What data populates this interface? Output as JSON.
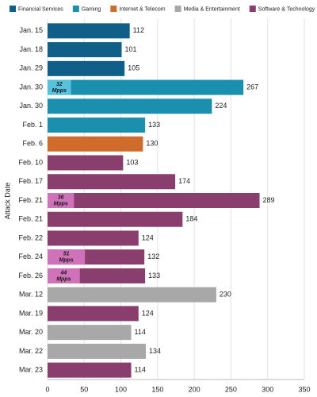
{
  "chart_data": {
    "type": "bar",
    "orientation": "horizontal",
    "y_label": "Attack Date",
    "categories": [
      "Jan. 15",
      "Jan. 18",
      "Jan. 29",
      "Jan. 30",
      "Jan. 30",
      "Feb. 1",
      "Feb. 6",
      "Feb. 10",
      "Feb. 17",
      "Feb. 21",
      "Feb. 21",
      "Feb. 22",
      "Feb. 24",
      "Feb. 26",
      "Mar. 12",
      "Mar. 19",
      "Mar. 20",
      "Mar. 22",
      "Mar. 23"
    ],
    "series": [
      {
        "name": "Financial Services",
        "color": "#0f5f88",
        "values": [
          112,
          101,
          105,
          null,
          null,
          null,
          null,
          null,
          null,
          null,
          null,
          null,
          null,
          null,
          null,
          null,
          null,
          null,
          null
        ]
      },
      {
        "name": "Gaming",
        "color": "#1b8fae",
        "values": [
          null,
          null,
          null,
          267,
          224,
          133,
          null,
          null,
          null,
          null,
          null,
          null,
          null,
          null,
          null,
          null,
          null,
          null,
          null
        ]
      },
      {
        "name": "Internet & Telecom",
        "color": "#d06c2b",
        "values": [
          null,
          null,
          null,
          null,
          null,
          null,
          130,
          null,
          null,
          null,
          null,
          null,
          null,
          null,
          null,
          null,
          null,
          null,
          null
        ]
      },
      {
        "name": "Media & Entertainment",
        "color": "#a8a8a8",
        "values": [
          null,
          null,
          null,
          null,
          null,
          null,
          null,
          null,
          null,
          null,
          null,
          null,
          null,
          null,
          230,
          null,
          114,
          134,
          null
        ]
      },
      {
        "name": "Software & Technology",
        "color": "#8a3e6e",
        "values": [
          null,
          null,
          null,
          null,
          null,
          null,
          null,
          103,
          174,
          289,
          184,
          124,
          132,
          133,
          null,
          124,
          null,
          null,
          114
        ]
      }
    ],
    "overlay_unit": "Mpps",
    "overlays": [
      {
        "color": "#56c2dd",
        "values": [
          null,
          null,
          null,
          32,
          null,
          null,
          null,
          null,
          null,
          null,
          null,
          null,
          null,
          null,
          null,
          null,
          null,
          null,
          null
        ]
      },
      {
        "color": "#d072b9",
        "values": [
          null,
          null,
          null,
          null,
          null,
          null,
          null,
          null,
          null,
          36,
          null,
          null,
          51,
          44,
          null,
          null,
          null,
          null,
          null
        ]
      }
    ],
    "xlim": [
      0,
      350
    ],
    "xticks": [
      0,
      50,
      100,
      150,
      200,
      250,
      300,
      350
    ],
    "grid": true
  }
}
